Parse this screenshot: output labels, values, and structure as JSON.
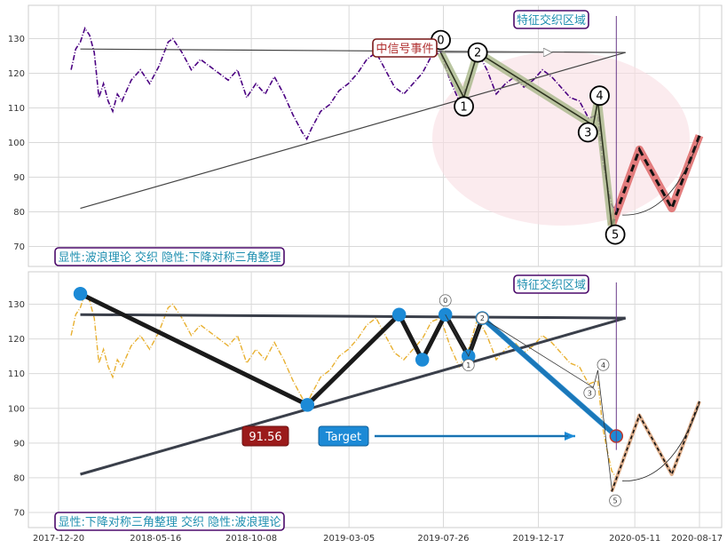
{
  "chart_data": [
    {
      "type": "line",
      "panel": "top",
      "ylim": [
        64,
        140
      ],
      "yticks": [
        70,
        80,
        90,
        100,
        110,
        120,
        130
      ],
      "grid": true,
      "price_color": "#4b0082",
      "price_style": "dash-dot",
      "price": [
        [
          "2018-01-08",
          121
        ],
        [
          "2018-01-15",
          127
        ],
        [
          "2018-01-22",
          129
        ],
        [
          "2018-01-29",
          133
        ],
        [
          "2018-02-05",
          131
        ],
        [
          "2018-02-12",
          126
        ],
        [
          "2018-02-19",
          113
        ],
        [
          "2018-02-26",
          117
        ],
        [
          "2018-03-05",
          112
        ],
        [
          "2018-03-12",
          109
        ],
        [
          "2018-03-19",
          114
        ],
        [
          "2018-03-26",
          112
        ],
        [
          "2018-04-09",
          118
        ],
        [
          "2018-04-23",
          121
        ],
        [
          "2018-05-07",
          117
        ],
        [
          "2018-05-21",
          122
        ],
        [
          "2018-06-04",
          129
        ],
        [
          "2018-06-11",
          130
        ],
        [
          "2018-06-25",
          126
        ],
        [
          "2018-07-09",
          121
        ],
        [
          "2018-07-23",
          124
        ],
        [
          "2018-08-06",
          122
        ],
        [
          "2018-08-20",
          120
        ],
        [
          "2018-09-03",
          118
        ],
        [
          "2018-09-17",
          121
        ],
        [
          "2018-10-01",
          113
        ],
        [
          "2018-10-15",
          117
        ],
        [
          "2018-10-29",
          114
        ],
        [
          "2018-11-12",
          119
        ],
        [
          "2018-11-26",
          114
        ],
        [
          "2018-12-10",
          108
        ],
        [
          "2018-12-24",
          103
        ],
        [
          "2018-12-31",
          101
        ],
        [
          "2019-01-07",
          104
        ],
        [
          "2019-01-21",
          109
        ],
        [
          "2019-02-04",
          111
        ],
        [
          "2019-02-18",
          115
        ],
        [
          "2019-03-04",
          117
        ],
        [
          "2019-03-18",
          120
        ],
        [
          "2019-04-01",
          124
        ],
        [
          "2019-04-15",
          126
        ],
        [
          "2019-04-29",
          121
        ],
        [
          "2019-05-13",
          116
        ],
        [
          "2019-05-27",
          114
        ],
        [
          "2019-06-10",
          117
        ],
        [
          "2019-06-24",
          120
        ],
        [
          "2019-07-08",
          125
        ],
        [
          "2019-07-22",
          126
        ],
        [
          "2019-08-05",
          118
        ],
        [
          "2019-08-19",
          112
        ],
        [
          "2019-09-02",
          117
        ],
        [
          "2019-09-16",
          126
        ],
        [
          "2019-09-30",
          121
        ],
        [
          "2019-10-14",
          114
        ],
        [
          "2019-10-28",
          117
        ],
        [
          "2019-11-11",
          119
        ],
        [
          "2019-11-25",
          116
        ],
        [
          "2019-12-09",
          118
        ],
        [
          "2019-12-23",
          121
        ],
        [
          "2020-01-06",
          119
        ],
        [
          "2020-01-20",
          116
        ],
        [
          "2020-02-03",
          113
        ],
        [
          "2020-02-17",
          112
        ],
        [
          "2020-03-02",
          107
        ],
        [
          "2020-03-16",
          108
        ],
        [
          "2020-03-23",
          95
        ],
        [
          "2020-03-30",
          88
        ],
        [
          "2020-04-06",
          82
        ],
        [
          "2020-04-13",
          80
        ]
      ],
      "triangle": [
        {
          "from": [
            "2018-01-22",
            127
          ],
          "to": [
            "2020-04-27",
            126
          ]
        },
        {
          "from": [
            "2018-01-22",
            81
          ],
          "to": [
            "2020-04-27",
            126
          ]
        }
      ],
      "wave_points": [
        {
          "label": "0",
          "date": "2019-07-22",
          "value": 126
        },
        {
          "label": "1",
          "date": "2019-08-26",
          "value": 113
        },
        {
          "label": "2",
          "date": "2019-09-16",
          "value": 126
        },
        {
          "label": "3",
          "date": "2020-03-09",
          "value": 105
        },
        {
          "label": "4",
          "date": "2020-03-16",
          "value": 112
        },
        {
          "label": "5",
          "date": "2020-04-06",
          "value": 76
        }
      ],
      "projection": [
        [
          "2020-04-06",
          76
        ],
        [
          "2020-05-18",
          98
        ],
        [
          "2020-07-06",
          81
        ],
        [
          "2020-08-17",
          102
        ]
      ],
      "annotations": {
        "event_label": "中信号事件",
        "zone_label": "特征交织区域",
        "footer": "显性:波浪理论 交织 隐性:下降对称三角整理"
      }
    },
    {
      "type": "line",
      "panel": "bottom",
      "ylim": [
        65,
        140
      ],
      "yticks": [
        70,
        80,
        90,
        100,
        110,
        120,
        130
      ],
      "grid": true,
      "price_color": "#e8b030",
      "price_style": "dash-dot",
      "x_tick_labels": [
        "2017-12-20",
        "2018-05-16",
        "2018-10-08",
        "2019-03-05",
        "2019-07-26",
        "2019-12-17",
        "2020-05-11",
        "2020-08-17"
      ],
      "triangle": [
        {
          "from": [
            "2018-01-22",
            127
          ],
          "to": [
            "2020-04-27",
            126
          ]
        },
        {
          "from": [
            "2018-01-22",
            81
          ],
          "to": [
            "2020-04-27",
            126
          ]
        }
      ],
      "pattern_points": [
        [
          "2018-01-22",
          133
        ],
        [
          "2019-01-01",
          101
        ],
        [
          "2019-05-20",
          127
        ],
        [
          "2019-06-24",
          114
        ],
        [
          "2019-07-29",
          127
        ],
        [
          "2019-09-02",
          115
        ],
        [
          "2019-09-23",
          126
        ],
        [
          "2020-04-13",
          92
        ]
      ],
      "wave_points": [
        {
          "label": "0",
          "date": "2019-07-29",
          "value": 127
        },
        {
          "label": "1",
          "date": "2019-09-02",
          "value": 115
        },
        {
          "label": "2",
          "date": "2019-09-23",
          "value": 126
        },
        {
          "label": "3",
          "date": "2020-03-09",
          "value": 106
        },
        {
          "label": "4",
          "date": "2020-03-16",
          "value": 111
        },
        {
          "label": "5",
          "date": "2020-04-06",
          "value": 77
        }
      ],
      "projection": [
        [
          "2020-04-06",
          76
        ],
        [
          "2020-05-18",
          98
        ],
        [
          "2020-07-06",
          81
        ],
        [
          "2020-08-17",
          102
        ]
      ],
      "annotations": {
        "price_label": "91.56",
        "target_label": "Target",
        "zone_label": "特征交织区域",
        "footer": "显性:下降对称三角整理 交织 隐性:波浪理论"
      }
    }
  ]
}
